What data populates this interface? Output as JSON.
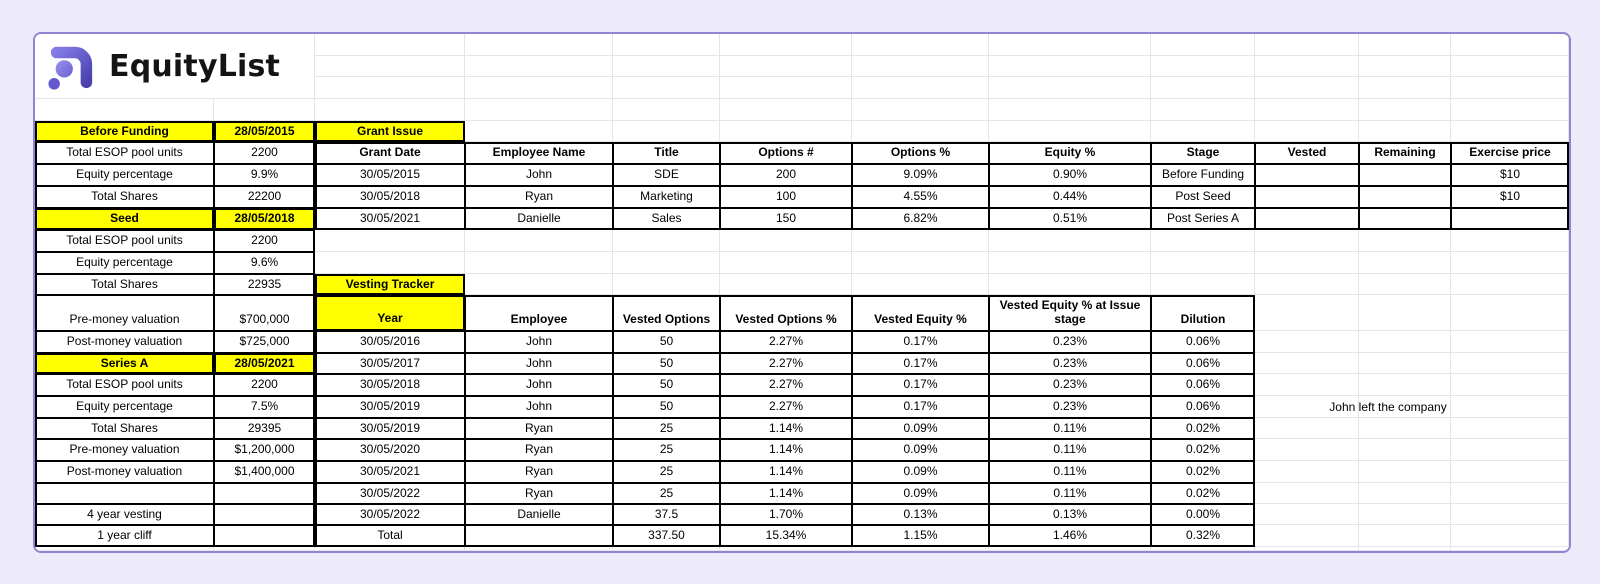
{
  "logo": {
    "brand": "EquityList"
  },
  "note": "John left the company",
  "colors": {
    "highlight": "#ffff00",
    "page_background": "#edebf9",
    "sheet_border": "#8d87d2",
    "gridline": "#e5e5e8",
    "logo_purple_dark": "#4a41ae",
    "logo_purple_light": "#9289e9"
  },
  "funding_panel": {
    "stages": [
      {
        "label": "Before Funding",
        "date": "28/05/2015",
        "rows": [
          [
            "Total ESOP pool units",
            "2200"
          ],
          [
            "Equity percentage",
            "9.9%"
          ],
          [
            "Total Shares",
            "22200"
          ]
        ]
      },
      {
        "label": "Seed",
        "date": "28/05/2018",
        "rows": [
          [
            "Total ESOP pool units",
            "2200"
          ],
          [
            "Equity percentage",
            "9.6%"
          ],
          [
            "Total Shares",
            "22935"
          ],
          [
            "Pre-money valuation",
            "$700,000"
          ],
          [
            "Post-money valuation",
            "$725,000"
          ]
        ]
      },
      {
        "label": "Series A",
        "date": "28/05/2021",
        "rows": [
          [
            "Total ESOP pool units",
            "2200"
          ],
          [
            "Equity percentage",
            "7.5%"
          ],
          [
            "Total Shares",
            "29395"
          ],
          [
            "Pre-money valuation",
            "$1,200,000"
          ],
          [
            "Post-money valuation",
            "$1,400,000"
          ]
        ]
      }
    ],
    "spacer_row": [
      "",
      ""
    ],
    "footer_rows": [
      [
        "4 year vesting",
        ""
      ],
      [
        "1 year cliff",
        ""
      ]
    ]
  },
  "grant_table": {
    "title": "Grant Issue",
    "headers": [
      "Grant Date",
      "Employee Name",
      "Title",
      "Options #",
      "Options %",
      "Equity %",
      "Stage",
      "Vested",
      "Remaining",
      "Exercise price"
    ],
    "rows": [
      [
        "30/05/2015",
        "John",
        "SDE",
        "200",
        "9.09%",
        "0.90%",
        "Before Funding",
        "",
        "",
        "$10"
      ],
      [
        "30/05/2018",
        "Ryan",
        "Marketing",
        "100",
        "4.55%",
        "0.44%",
        "Post Seed",
        "",
        "",
        "$10"
      ],
      [
        "30/05/2021",
        "Danielle",
        "Sales",
        "150",
        "6.82%",
        "0.51%",
        "Post Series A",
        "",
        "",
        ""
      ]
    ]
  },
  "vesting_table": {
    "title": "Vesting Tracker",
    "headers": [
      "Year",
      "Employee",
      "Vested Options",
      "Vested Options %",
      "Vested Equity %",
      "Vested Equity % at Issue stage",
      "Dilution"
    ],
    "rows": [
      [
        "30/05/2016",
        "John",
        "50",
        "2.27%",
        "0.17%",
        "0.23%",
        "0.06%"
      ],
      [
        "30/05/2017",
        "John",
        "50",
        "2.27%",
        "0.17%",
        "0.23%",
        "0.06%"
      ],
      [
        "30/05/2018",
        "John",
        "50",
        "2.27%",
        "0.17%",
        "0.23%",
        "0.06%"
      ],
      [
        "30/05/2019",
        "John",
        "50",
        "2.27%",
        "0.17%",
        "0.23%",
        "0.06%"
      ],
      [
        "30/05/2019",
        "Ryan",
        "25",
        "1.14%",
        "0.09%",
        "0.11%",
        "0.02%"
      ],
      [
        "30/05/2020",
        "Ryan",
        "25",
        "1.14%",
        "0.09%",
        "0.11%",
        "0.02%"
      ],
      [
        "30/05/2021",
        "Ryan",
        "25",
        "1.14%",
        "0.09%",
        "0.11%",
        "0.02%"
      ],
      [
        "30/05/2022",
        "Ryan",
        "25",
        "1.14%",
        "0.09%",
        "0.11%",
        "0.02%"
      ],
      [
        "30/05/2022",
        "Danielle",
        "37.5",
        "1.70%",
        "0.13%",
        "0.13%",
        "0.00%"
      ]
    ],
    "total_row": [
      "Total",
      "",
      "337.50",
      "15.34%",
      "1.15%",
      "1.46%",
      "0.32%"
    ]
  }
}
